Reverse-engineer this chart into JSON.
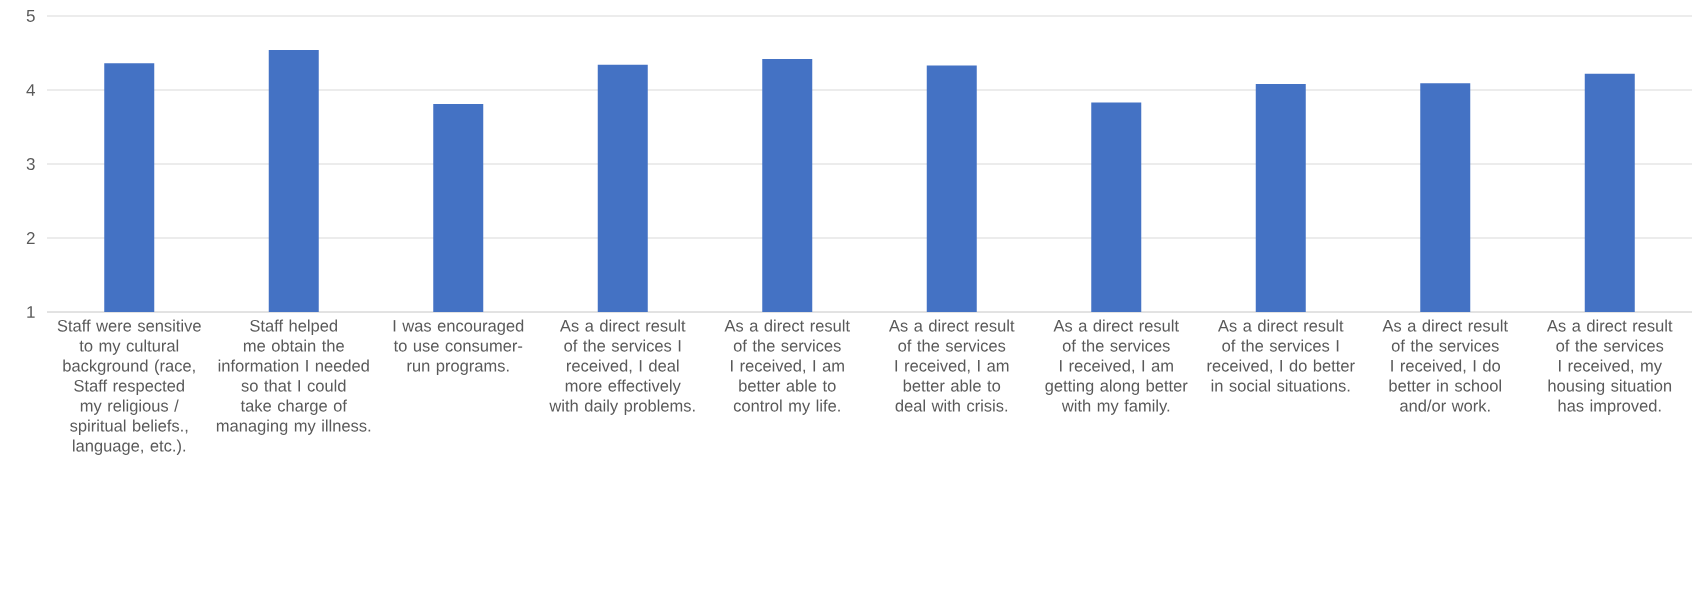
{
  "chart_data": {
    "type": "bar",
    "categories": [
      "Staff were sensitive to my cultural background (race, Staff respected my religious / spiritual beliefs., language, etc.).",
      "Staff helped me obtain the information I needed so that I could take charge of managing my illness.",
      "I was encouraged to use consumer-run programs.",
      "As a direct result of the services I received, I deal more effectively with daily problems.",
      "As a direct result of the services I received, I am better able to control my life.",
      "As a direct result of the services I received, I am better able to deal with crisis.",
      "As a direct result of the services I received, I am getting along better with my family.",
      "As a direct result of the services I received, I do better in social situations.",
      "As a direct result of the services I received, I do better in school and/or work.",
      "As a direct result of the services I received, my housing situation has improved."
    ],
    "values": [
      4.36,
      4.54,
      3.81,
      4.34,
      4.42,
      4.33,
      3.83,
      4.08,
      4.09,
      4.22
    ],
    "color": "#4472c4",
    "ylim": [
      1,
      5
    ],
    "yticks": [
      1,
      2,
      3,
      4,
      5
    ],
    "grid": "y"
  }
}
